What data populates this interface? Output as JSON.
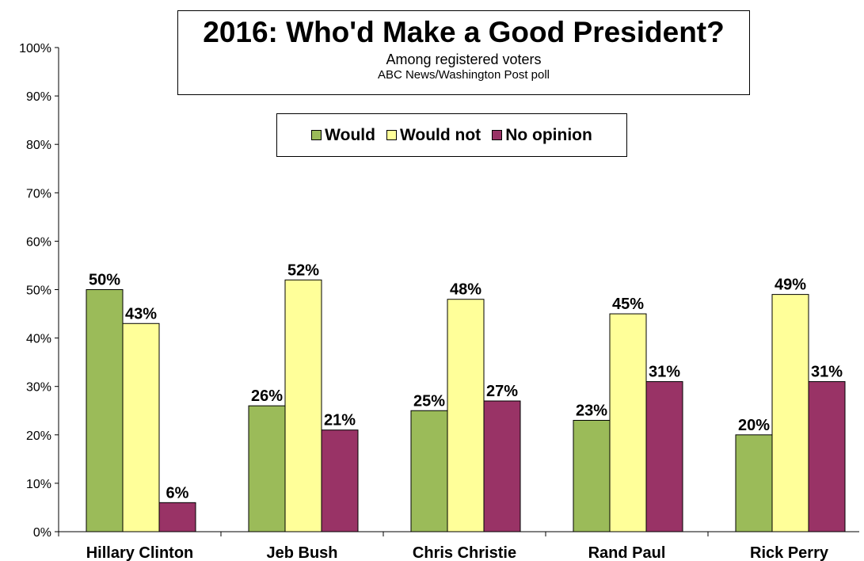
{
  "chart_data": {
    "type": "bar",
    "title": "2016: Who'd Make a Good President?",
    "subtitle": "Among registered voters",
    "source": "ABC News/Washington  Post poll",
    "categories": [
      "Hillary Clinton",
      "Jeb Bush",
      "Chris Christie",
      "Rand Paul",
      "Rick Perry"
    ],
    "series": [
      {
        "name": "Would",
        "color": "#9bbb59",
        "values": [
          50,
          26,
          25,
          23,
          20
        ],
        "labels": [
          "50%",
          "26%",
          "25%",
          "23%",
          "20%"
        ]
      },
      {
        "name": "Would not",
        "color": "#ffff99",
        "values": [
          43,
          52,
          48,
          45,
          49
        ],
        "labels": [
          "43%",
          "52%",
          "48%",
          "45%",
          "49%"
        ]
      },
      {
        "name": "No opinion",
        "color": "#993366",
        "values": [
          6,
          21,
          27,
          31,
          31
        ],
        "labels": [
          "6%",
          "21%",
          "27%",
          "31%",
          "31%"
        ]
      }
    ],
    "ylim": [
      0,
      100
    ],
    "yticks": [
      "0%",
      "10%",
      "20%",
      "30%",
      "40%",
      "50%",
      "60%",
      "70%",
      "80%",
      "90%",
      "100%"
    ],
    "grid": false,
    "legend_position": "top-center"
  }
}
